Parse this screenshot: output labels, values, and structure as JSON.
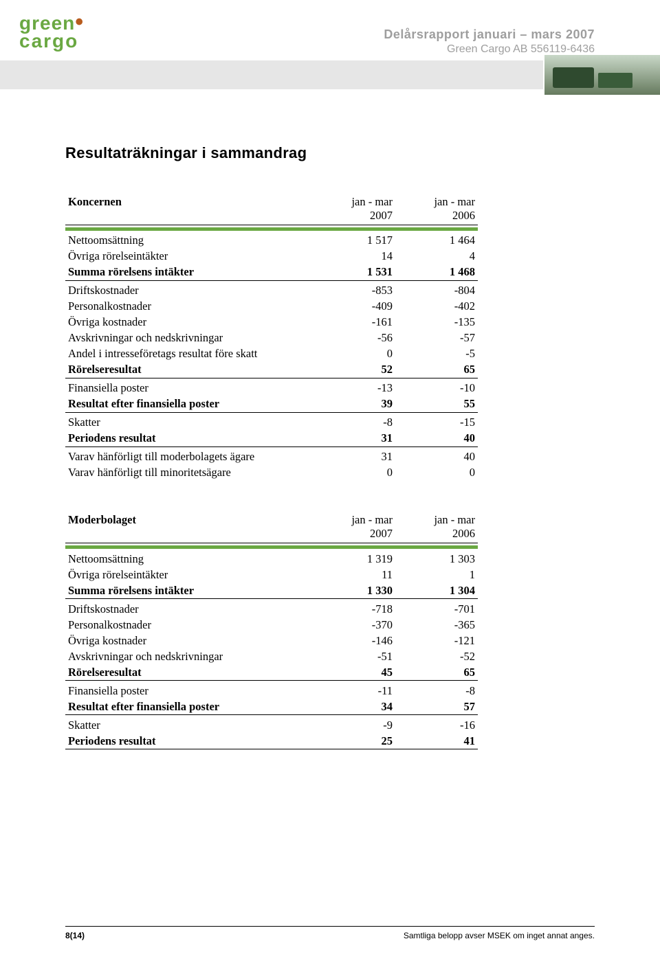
{
  "header": {
    "logo_top": "green",
    "logo_bottom": "cargo",
    "title": "Delårsrapport januari – mars 2007",
    "subtitle": "Green Cargo AB   556119-6436"
  },
  "page_title": "Resultaträkningar i sammandrag",
  "col_title_left": "jan - mar",
  "col_title_right": "jan - mar",
  "colors": {
    "green": "#6aa842",
    "grey_text": "#9e9e9e",
    "banner_grey": "#e6e6e6"
  },
  "table1": {
    "name": "Koncernen",
    "year1": "2007",
    "year2": "2006",
    "rows": [
      {
        "label": "Nettoomsättning",
        "v1": "1 517",
        "v2": "1 464"
      },
      {
        "label": "Övriga rörelseintäkter",
        "v1": "14",
        "v2": "4"
      },
      {
        "label": "Summa rörelsens intäkter",
        "v1": "1 531",
        "v2": "1 468",
        "bold": true,
        "rule_after": true
      },
      {
        "label": "Driftskostnader",
        "v1": "-853",
        "v2": "-804",
        "space_before": true
      },
      {
        "label": "Personalkostnader",
        "v1": "-409",
        "v2": "-402"
      },
      {
        "label": "Övriga kostnader",
        "v1": "-161",
        "v2": "-135"
      },
      {
        "label": "Avskrivningar och nedskrivningar",
        "v1": "-56",
        "v2": "-57"
      },
      {
        "label": "Andel i intresseföretags resultat före skatt",
        "v1": "0",
        "v2": "-5"
      },
      {
        "label": "Rörelseresultat",
        "v1": "52",
        "v2": "65",
        "bold": true,
        "rule_after": true
      },
      {
        "label": "Finansiella poster",
        "v1": "-13",
        "v2": "-10",
        "space_before": true
      },
      {
        "label": "Resultat efter finansiella poster",
        "v1": "39",
        "v2": "55",
        "bold": true,
        "rule_after": true
      },
      {
        "label": "Skatter",
        "v1": "-8",
        "v2": "-15",
        "space_before": true
      },
      {
        "label": "Periodens resultat",
        "v1": "31",
        "v2": "40",
        "bold": true,
        "rule_after": true
      },
      {
        "label": "Varav hänförligt till moderbolagets ägare",
        "v1": "31",
        "v2": "40",
        "space_before": true
      },
      {
        "label": "Varav hänförligt till minoritetsägare",
        "v1": "0",
        "v2": "0"
      }
    ]
  },
  "table2": {
    "name": "Moderbolaget",
    "year1": "2007",
    "year2": "2006",
    "rows": [
      {
        "label": "Nettoomsättning",
        "v1": "1 319",
        "v2": "1 303"
      },
      {
        "label": "Övriga rörelseintäkter",
        "v1": "11",
        "v2": "1"
      },
      {
        "label": "Summa rörelsens intäkter",
        "v1": "1 330",
        "v2": "1 304",
        "bold": true,
        "rule_after": true
      },
      {
        "label": "Driftskostnader",
        "v1": "-718",
        "v2": "-701",
        "space_before": true
      },
      {
        "label": "Personalkostnader",
        "v1": "-370",
        "v2": "-365"
      },
      {
        "label": "Övriga kostnader",
        "v1": "-146",
        "v2": "-121"
      },
      {
        "label": "Avskrivningar och nedskrivningar",
        "v1": "-51",
        "v2": "-52"
      },
      {
        "label": "Rörelseresultat",
        "v1": "45",
        "v2": "65",
        "bold": true,
        "rule_after": true
      },
      {
        "label": "Finansiella poster",
        "v1": "-11",
        "v2": "-8",
        "space_before": true
      },
      {
        "label": "Resultat efter finansiella poster",
        "v1": "34",
        "v2": "57",
        "bold": true,
        "rule_after": true
      },
      {
        "label": "Skatter",
        "v1": "-9",
        "v2": "-16",
        "space_before": true
      },
      {
        "label": "Periodens resultat",
        "v1": "25",
        "v2": "41",
        "bold": true,
        "rule_after": true
      }
    ]
  },
  "footer": {
    "page": "8(14)",
    "note": "Samtliga belopp avser MSEK om inget annat anges."
  }
}
